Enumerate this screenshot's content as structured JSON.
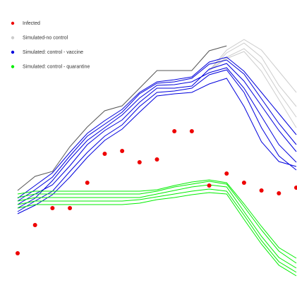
{
  "chart_data": {
    "type": "line",
    "x": [
      0,
      1,
      2,
      3,
      4,
      5,
      6,
      7,
      8,
      9,
      10,
      11,
      12,
      13,
      14,
      15,
      16
    ],
    "xlim": [
      0,
      16
    ],
    "ylim": [
      0,
      421
    ],
    "series": [
      {
        "name": "Infected",
        "kind": "scatter",
        "color": "#ee0000",
        "runs": [
          [
            62,
            102,
            126,
            126,
            162,
            203,
            207,
            191,
            195,
            235,
            235,
            158,
            175,
            162,
            151,
            147,
            155
          ]
        ]
      },
      {
        "name": "Simulated-no control",
        "color": "#cccccc",
        "runs": [
          [
            null,
            null,
            null,
            null,
            null,
            null,
            null,
            null,
            null,
            null,
            null,
            321,
            346,
            360,
            340,
            300,
            270
          ],
          [
            null,
            null,
            null,
            null,
            null,
            null,
            null,
            null,
            null,
            null,
            null,
            321,
            340,
            352,
            330,
            290,
            255
          ],
          [
            null,
            null,
            null,
            null,
            null,
            null,
            null,
            null,
            null,
            null,
            null,
            321,
            350,
            365,
            350,
            320,
            290
          ],
          [
            null,
            null,
            null,
            null,
            null,
            null,
            null,
            null,
            null,
            null,
            null,
            321,
            338,
            348,
            320,
            280,
            240
          ]
        ]
      },
      {
        "color": "#555555",
        "runs": [
          [
            151,
            171,
            178,
            213,
            241,
            264,
            271,
            296,
            321,
            321,
            321,
            349,
            356,
            null,
            null,
            null,
            null
          ]
        ]
      },
      {
        "name": "Simulated: control - vaccine",
        "color": "#0000dd",
        "runs": [
          [
            131,
            146,
            159,
            186,
            216,
            236,
            251,
            276,
            296,
            296,
            299,
            323,
            331,
            306,
            271,
            236,
            206
          ],
          [
            126,
            140,
            165,
            195,
            222,
            240,
            258,
            282,
            300,
            301,
            305,
            318,
            325,
            296,
            256,
            216,
            191
          ],
          [
            136,
            152,
            170,
            200,
            228,
            245,
            262,
            288,
            303,
            305,
            310,
            330,
            336,
            316,
            281,
            246,
            216
          ],
          [
            121,
            136,
            150,
            178,
            205,
            228,
            244,
            270,
            290,
            292,
            296,
            315,
            322,
            290,
            240,
            200,
            180
          ],
          [
            140,
            158,
            176,
            205,
            232,
            250,
            266,
            290,
            305,
            308,
            312,
            333,
            340,
            320,
            290,
            260,
            230
          ],
          [
            118,
            130,
            145,
            170,
            198,
            222,
            238,
            262,
            285,
            288,
            290,
            302,
            310,
            270,
            220,
            192,
            185
          ]
        ]
      },
      {
        "name": "Simulated: control - quarantine",
        "color": "#00ee00",
        "runs": [
          [
            136,
            141,
            141,
            141,
            141,
            141,
            141,
            141,
            146,
            151,
            156,
            159,
            156,
            121,
            86,
            56,
            41
          ],
          [
            131,
            136,
            136,
            136,
            136,
            136,
            136,
            138,
            142,
            146,
            150,
            153,
            150,
            116,
            80,
            50,
            35
          ],
          [
            141,
            146,
            146,
            146,
            146,
            146,
            146,
            146,
            150,
            156,
            160,
            164,
            160,
            128,
            95,
            65,
            48
          ],
          [
            126,
            131,
            131,
            131,
            131,
            131,
            131,
            133,
            138,
            141,
            145,
            148,
            146,
            110,
            75,
            45,
            30
          ],
          [
            146,
            150,
            150,
            150,
            150,
            150,
            150,
            150,
            152,
            158,
            163,
            166,
            162,
            132,
            100,
            70,
            55
          ]
        ]
      }
    ]
  }
}
